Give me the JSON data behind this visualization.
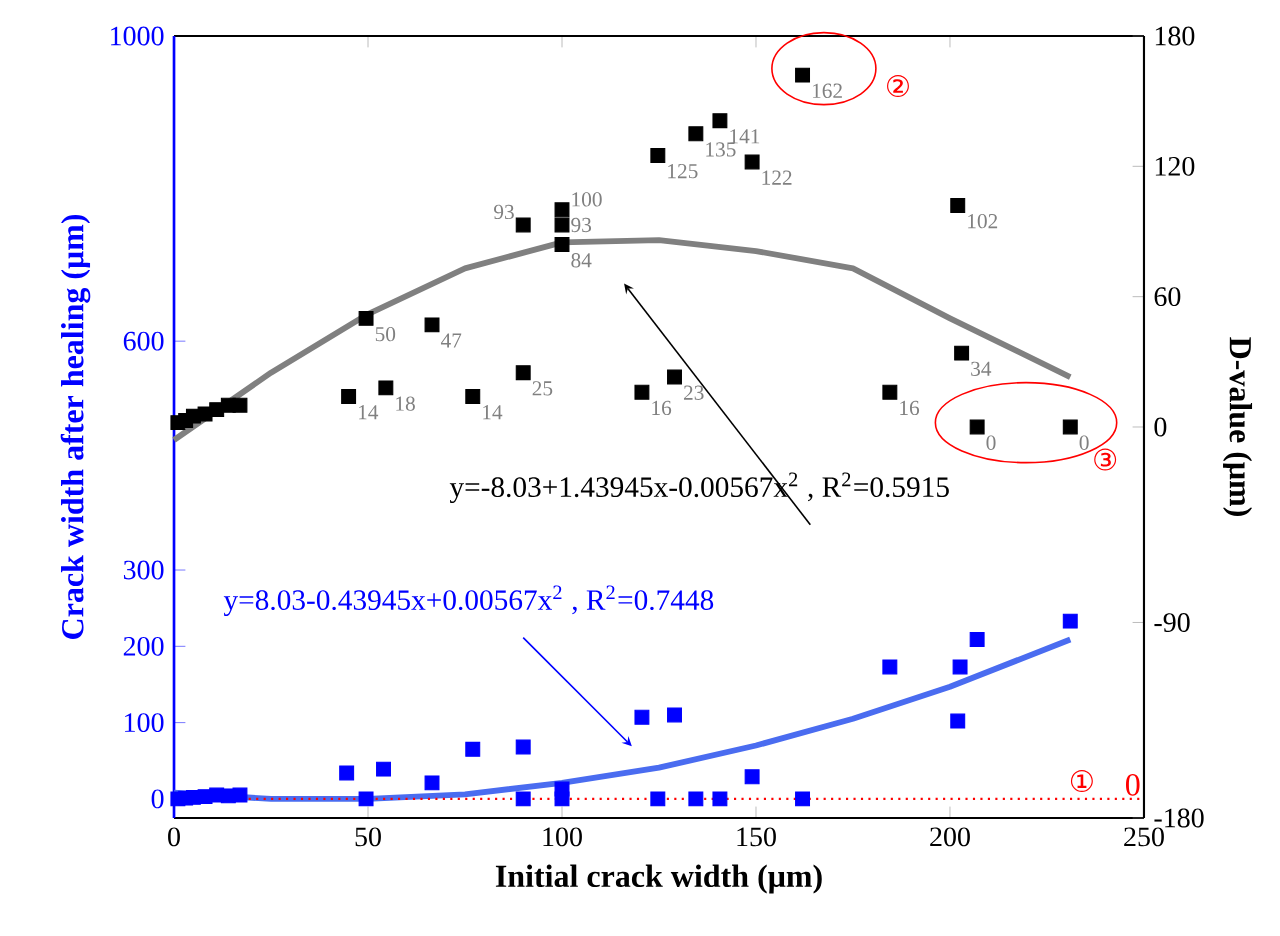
{
  "chart_data": {
    "type": "scatter",
    "xlabel": "Initial crack width (μm)",
    "ylabel": "Crack width after healing (μm)",
    "y2label": "D-value (μm)",
    "xlim": [
      0,
      250
    ],
    "xticks": [
      0,
      50,
      100,
      150,
      200,
      250
    ],
    "ylim": [
      -25,
      1000
    ],
    "yticks": [
      0,
      100,
      200,
      300,
      600,
      1000
    ],
    "y2lim": [
      -180,
      180
    ],
    "y2ticks": [
      -180,
      -90,
      0,
      60,
      120,
      180
    ],
    "marker": "square",
    "series": [
      {
        "axis": "y",
        "color": "#0000ff",
        "x": [
          1,
          3,
          5,
          8,
          11,
          14,
          17,
          44.5,
          49.5,
          54,
          66.5,
          77,
          90,
          90,
          100,
          100,
          120.6,
          124.7,
          129,
          134.5,
          140.7,
          149,
          162,
          184.5,
          202,
          202.6,
          207,
          231
        ],
        "values": [
          0,
          1,
          2,
          3,
          5,
          4,
          5,
          34,
          0,
          39,
          21,
          65,
          68,
          0,
          13,
          0,
          107,
          0,
          110,
          0,
          0,
          29,
          0,
          173,
          102,
          173,
          209,
          233
        ]
      },
      {
        "type": "line",
        "axis": "y",
        "color": "#4a6cf0",
        "marker": "none",
        "x": [
          0,
          25,
          50,
          75,
          100,
          125,
          150,
          175,
          200,
          231
        ],
        "values": [
          8,
          0,
          0,
          6,
          21,
          41,
          70,
          105,
          147,
          209
        ]
      },
      {
        "axis": "y2",
        "color": "#000000",
        "x": [
          1,
          3,
          5,
          8,
          11,
          14,
          17,
          45,
          49.5,
          54.6,
          66.5,
          77,
          90,
          90,
          100,
          100,
          100,
          120.6,
          124.7,
          129,
          134.5,
          140.7,
          149,
          162,
          184.5,
          202,
          203,
          207,
          231
        ],
        "values": [
          2,
          3,
          5,
          6,
          8,
          10,
          10,
          14,
          50,
          18,
          47,
          14,
          25,
          93,
          100,
          93,
          84,
          16,
          125,
          23,
          135,
          141,
          122,
          162,
          16,
          102,
          34,
          0,
          0
        ],
        "value_labels": [
          null,
          null,
          null,
          null,
          null,
          null,
          null,
          "14",
          "50",
          "18",
          "47",
          "14",
          "25",
          "93",
          "100",
          "93",
          "84",
          "16",
          "125",
          "23",
          "135",
          "141",
          "122",
          "162",
          "16",
          "102",
          "34",
          "0",
          "0"
        ]
      },
      {
        "type": "line",
        "axis": "y2",
        "color": "#808080",
        "marker": "none",
        "x": [
          0,
          25,
          50,
          75,
          100,
          125,
          150,
          175,
          200,
          231
        ],
        "values": [
          -6,
          25,
          52,
          73,
          85,
          86,
          81,
          73,
          50,
          23
        ]
      }
    ],
    "ref_lines": [
      {
        "axis": "y",
        "value": 0,
        "label": "0",
        "color": "#ff0000",
        "line_style": "dotted"
      }
    ],
    "annotations": [
      "y=-8.03+1.43945x-0.00567x$^{2}$ , R$^{2}$=0.5915",
      "y=8.03-0.43945x+0.00567x$^{2}$ , R$^{2}$=0.7448",
      "①",
      "②",
      "③"
    ]
  }
}
